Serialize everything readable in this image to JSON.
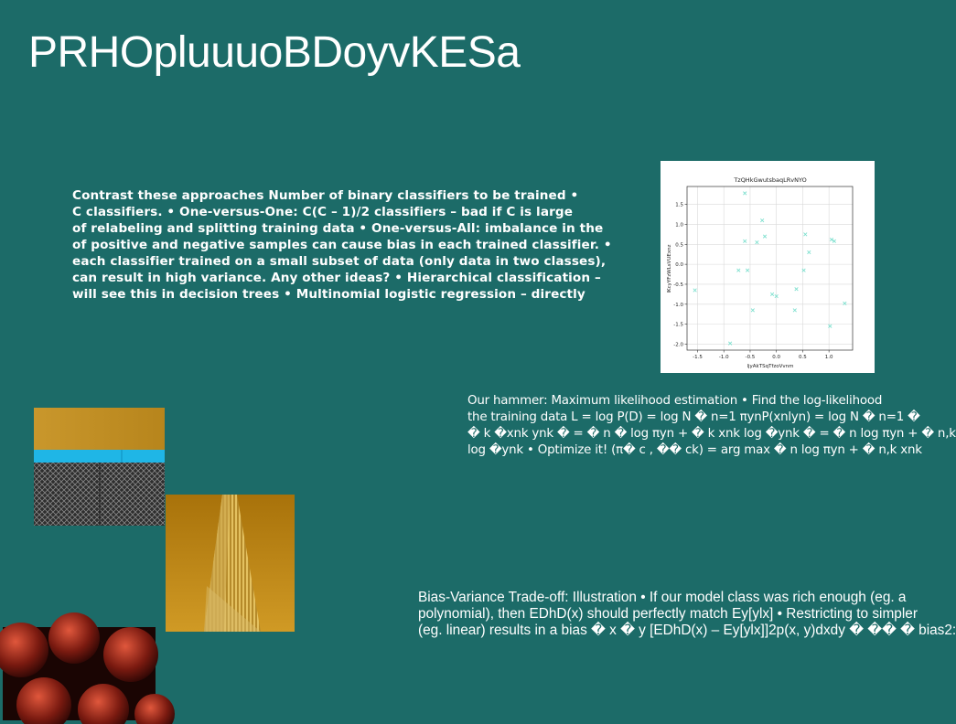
{
  "slide": {
    "title": "PRHOpluuuoBDoyvKESa",
    "block1_lines": [
      "Contrast these approaches Number of binary classifiers to be trained •",
      "C classifiers. • One-versus-One: C(C – 1)/2 classifiers – bad if C is large",
      "of relabeling and splitting training data • One-versus-All: imbalance in the",
      "of positive and negative samples can cause bias in each trained classifier. •",
      "each classifier trained on a small subset of data (only data in two classes),",
      "can result in high variance. Any other ideas? • Hierarchical classification –",
      "will see this in decision trees • Multinomial logistic regression – directly"
    ],
    "block2_lines": [
      "Our hammer: Maximum likelihood estimation • Find the log-likelihood",
      "the training data L = log P(D) = log N � n=1 πynP(xnlyn) = log N � n=1 �",
      "� k �xnk ynk � = � n � log πyn + � k xnk log �ynk � = � n log πyn + � n,k",
      "log �ynk • Optimize it! (π� c , �� ck) = arg max � n log πyn + � n,k xnk"
    ],
    "block3_lines": [
      "Bias-Variance Trade-off: Illustration • If our model class was rich enough (eg. a",
      "polynomial), then EDhD(x) should perfectly match Ey[ylx] • Restricting to simpler",
      "(eg. linear) results in a bias � x � y [EDhD(x) – Ey[ylx]]2p(x, y)dxdy � �� � bias2:"
    ]
  },
  "chart_data": {
    "type": "scatter",
    "title": "TzQHkGwutsbaqLRvNYO",
    "xlabel": "ljyAkTSqTfzoVvnm",
    "ylabel": "lKcyYFzWLsVUExnz",
    "xlim": [
      -1.7,
      1.45
    ],
    "ylim": [
      -2.15,
      1.95
    ],
    "xticks": [
      "-1.5",
      "-1.0",
      "-0.5",
      "0.0",
      "0.5",
      "1.0"
    ],
    "xtick_values": [
      -1.5,
      -1.0,
      -0.5,
      0.0,
      0.5,
      1.0
    ],
    "yticks": [
      "1.5",
      "1.0",
      "0.5",
      "0.0",
      "-0.5",
      "-1.0",
      "-1.5",
      "-2.0"
    ],
    "ytick_values": [
      1.5,
      1.0,
      0.5,
      0.0,
      -0.5,
      -1.0,
      -1.5,
      -2.0
    ],
    "grid": true,
    "marker": "x",
    "color": "#7fe0cf",
    "points": [
      {
        "x": -1.55,
        "y": -0.65
      },
      {
        "x": -0.88,
        "y": -1.98
      },
      {
        "x": -0.72,
        "y": -0.15
      },
      {
        "x": -0.6,
        "y": 1.78
      },
      {
        "x": -0.6,
        "y": 0.58
      },
      {
        "x": -0.55,
        "y": -0.15
      },
      {
        "x": -0.45,
        "y": -1.15
      },
      {
        "x": -0.37,
        "y": 0.55
      },
      {
        "x": -0.27,
        "y": 1.1
      },
      {
        "x": -0.22,
        "y": 0.7
      },
      {
        "x": -0.08,
        "y": -0.75
      },
      {
        "x": 0.0,
        "y": -0.8
      },
      {
        "x": 0.35,
        "y": -1.15
      },
      {
        "x": 0.38,
        "y": -0.62
      },
      {
        "x": 0.52,
        "y": -0.15
      },
      {
        "x": 0.55,
        "y": 0.75
      },
      {
        "x": 0.62,
        "y": 0.3
      },
      {
        "x": 1.02,
        "y": -1.55
      },
      {
        "x": 1.05,
        "y": 0.62
      },
      {
        "x": 1.1,
        "y": 0.58
      },
      {
        "x": 1.3,
        "y": -0.98
      }
    ]
  }
}
